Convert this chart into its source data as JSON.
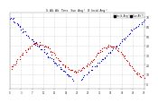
{
  "bg_color": "#ffffff",
  "plot_bg": "#ffffff",
  "grid_color": "#aaaaaa",
  "blue_color": "#0000cc",
  "red_color": "#cc0000",
  "ylim": [
    -5,
    75
  ],
  "xlim": [
    0,
    47
  ],
  "ytick_vals": [
    0,
    10,
    20,
    30,
    40,
    50,
    60,
    70
  ],
  "ytick_labels": [
    "0",
    "10",
    "20",
    "30",
    "40",
    "50",
    "60",
    "70"
  ],
  "title": "S. Alt. Alt   Time   Sun  Ang °   B  Incid. Ang °",
  "legend_blue": "Incid. Ang °",
  "legend_red": "Sun Alt °",
  "dot_size": 0.8,
  "num_points": 120
}
